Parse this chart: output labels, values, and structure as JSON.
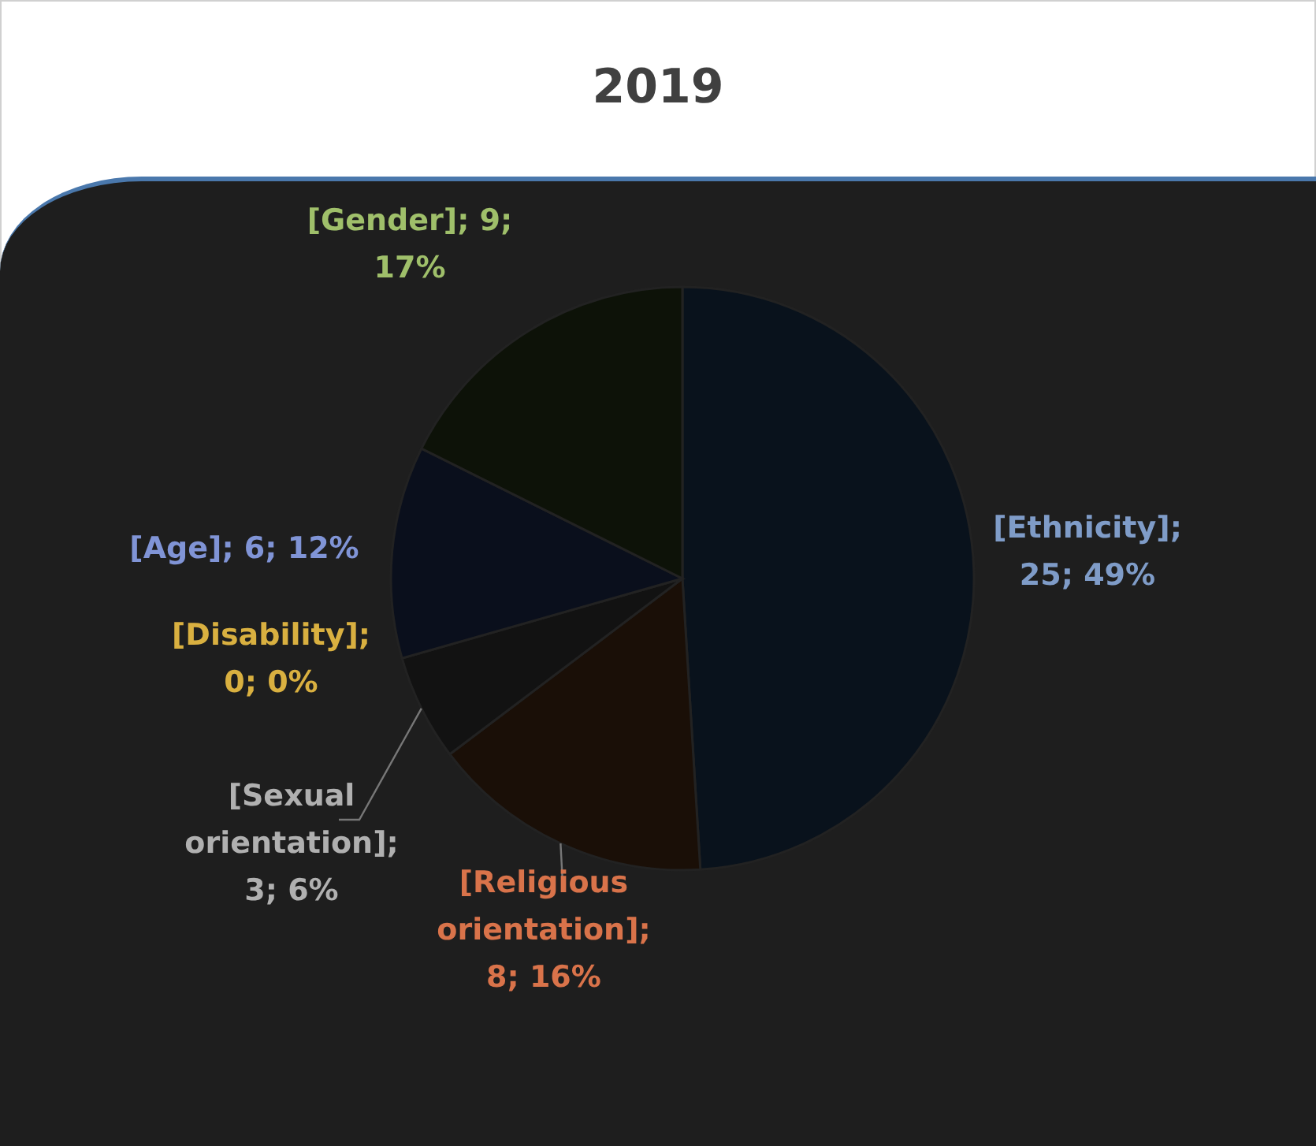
{
  "chart_data": {
    "type": "pie",
    "title": "2019",
    "categories": [
      "[Ethnicity]",
      "[Religious orientation]",
      "[Sexual orientation]",
      "[Disability]",
      "[Age]",
      "[Gender]"
    ],
    "values": [
      25,
      8,
      3,
      0,
      6,
      9
    ],
    "colors": [
      "#09121c",
      "#1a0f07",
      "#121212",
      "#2a2205",
      "#0a0f1c",
      "#0d1208"
    ],
    "value_labels": [
      "; 25; 49%",
      "; 8; 16%",
      "; 3; 6%",
      "; 0; 0%",
      "; 6; 12%",
      "; 9; 17%"
    ]
  }
}
